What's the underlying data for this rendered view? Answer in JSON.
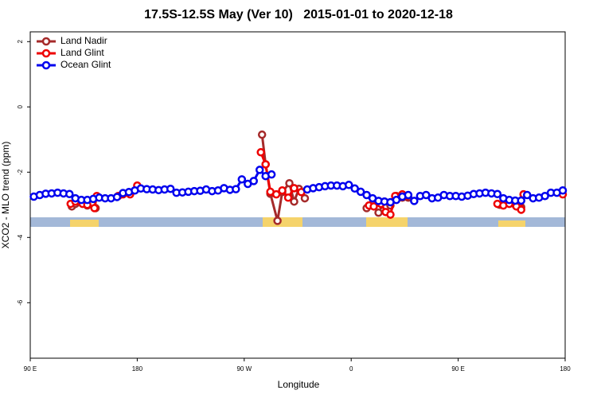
{
  "chart_data": {
    "type": "line",
    "title": "17.5S-12.5S May (Ver 10)   2015-01-01 to 2020-12-18",
    "xlabel": "Longitude",
    "ylabel": "XCO2 - MLO trend (ppm)",
    "xlim": [
      90,
      540
    ],
    "xticks": [
      {
        "value": 90,
        "label": "90 E"
      },
      {
        "value": 180,
        "label": "180"
      },
      {
        "value": 270,
        "label": "90 W"
      },
      {
        "value": 360,
        "label": "0"
      },
      {
        "value": 450,
        "label": "90 E"
      },
      {
        "value": 540,
        "label": "180"
      }
    ],
    "ylim": [
      -7.7,
      2.3
    ],
    "yticks": [
      2,
      0,
      -2,
      -4,
      -6
    ],
    "legend": "top-left",
    "series": [
      {
        "name": "Land Nadir",
        "color": "#a52a2a",
        "x": [
          125,
          128,
          135,
          138,
          145,
          200,
          285,
          288,
          292,
          298,
          302,
          308,
          312,
          316,
          321,
          350,
          373,
          378,
          383,
          388,
          393,
          398,
          403,
          408,
          450,
          485,
          490,
          497,
          503,
          505
        ],
        "values": [
          -3.05,
          -2.97,
          -2.93,
          -3.02,
          -3.1,
          null,
          -0.85,
          -1.76,
          -2.66,
          -3.49,
          -2.61,
          -2.34,
          -2.9,
          -2.51,
          -2.8,
          null,
          -3.1,
          -2.97,
          -3.24,
          -2.9,
          -3.02,
          -2.73,
          -2.78,
          -2.78,
          null,
          -3.0,
          -2.95,
          -2.97,
          -3.07,
          -2.68
        ]
      },
      {
        "name": "Land Glint",
        "color": "#ee0000",
        "x": [
          124,
          128,
          134,
          138,
          144,
          146,
          155,
          164,
          168,
          174,
          180,
          230,
          284,
          288,
          292,
          297,
          302,
          307,
          312,
          318,
          350,
          375,
          379,
          385,
          389,
          393,
          397,
          403,
          407,
          450,
          483,
          488,
          493,
          499,
          503,
          505,
          520,
          538
        ],
        "values": [
          -2.97,
          -2.9,
          -2.97,
          -3.0,
          -3.1,
          -2.73,
          null,
          -2.73,
          -2.68,
          -2.68,
          -2.41,
          null,
          -1.39,
          -1.76,
          -2.6,
          -2.68,
          -2.56,
          -2.78,
          -2.49,
          -2.61,
          null,
          -3.02,
          -3.05,
          -2.97,
          -3.22,
          -3.3,
          -2.73,
          -2.68,
          -2.73,
          null,
          -2.97,
          -3.02,
          -2.97,
          -3.05,
          -3.15,
          -2.68,
          null,
          -2.68
        ]
      },
      {
        "name": "Ocean Glint",
        "color": "#0000ee",
        "x": [
          93,
          98,
          103,
          108,
          113,
          118,
          123,
          128,
          133,
          138,
          143,
          148,
          153,
          158,
          163,
          168,
          173,
          178,
          183,
          188,
          193,
          198,
          203,
          208,
          213,
          218,
          223,
          228,
          233,
          238,
          243,
          248,
          253,
          258,
          263,
          268,
          273,
          278,
          283,
          288,
          293,
          305,
          323,
          328,
          333,
          338,
          343,
          348,
          353,
          358,
          363,
          368,
          373,
          378,
          383,
          388,
          393,
          398,
          403,
          408,
          413,
          418,
          423,
          428,
          433,
          438,
          443,
          448,
          453,
          458,
          463,
          468,
          473,
          478,
          483,
          488,
          493,
          498,
          503,
          508,
          513,
          518,
          523,
          528,
          533,
          538
        ],
        "values": [
          -2.75,
          -2.7,
          -2.66,
          -2.65,
          -2.63,
          -2.65,
          -2.67,
          -2.8,
          -2.85,
          -2.85,
          -2.82,
          -2.78,
          -2.8,
          -2.8,
          -2.76,
          -2.64,
          -2.61,
          -2.56,
          -2.5,
          -2.52,
          -2.53,
          -2.55,
          -2.53,
          -2.51,
          -2.63,
          -2.62,
          -2.6,
          -2.58,
          -2.57,
          -2.53,
          -2.58,
          -2.56,
          -2.49,
          -2.54,
          -2.52,
          -2.22,
          -2.36,
          -2.27,
          -1.93,
          -2.12,
          -2.07,
          null,
          -2.53,
          -2.49,
          -2.46,
          -2.43,
          -2.41,
          -2.41,
          -2.43,
          -2.39,
          -2.5,
          -2.6,
          -2.7,
          -2.8,
          -2.88,
          -2.9,
          -2.92,
          -2.85,
          -2.75,
          -2.7,
          -2.88,
          -2.73,
          -2.7,
          -2.8,
          -2.78,
          -2.7,
          -2.73,
          -2.73,
          -2.75,
          -2.72,
          -2.67,
          -2.65,
          -2.63,
          -2.65,
          -2.67,
          -2.8,
          -2.85,
          -2.87,
          -2.87,
          -2.7,
          -2.8,
          -2.78,
          -2.73,
          -2.63,
          -2.63,
          -2.56
        ]
      }
    ]
  }
}
